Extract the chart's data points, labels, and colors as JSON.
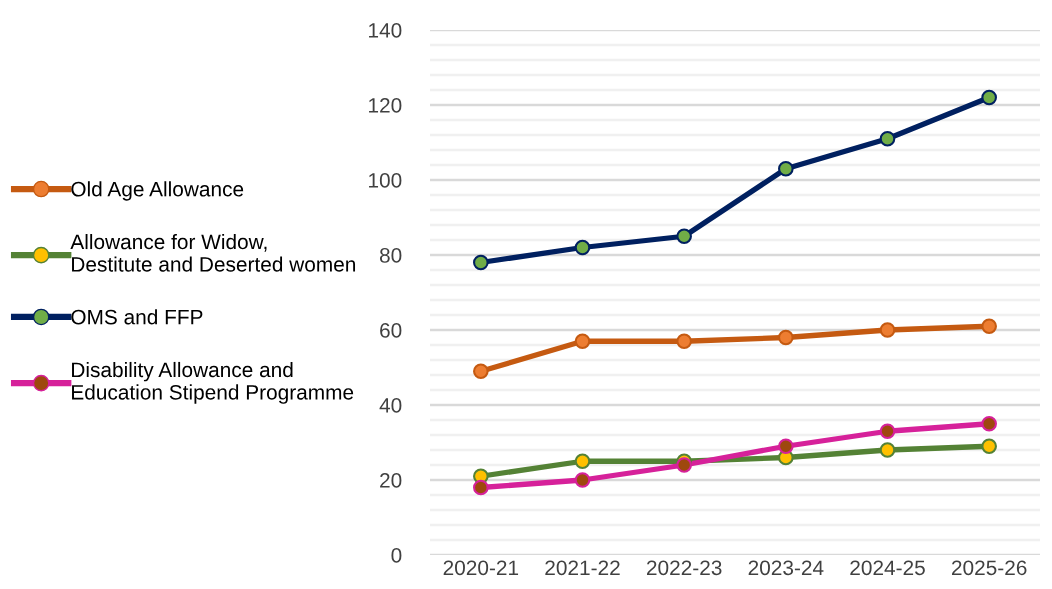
{
  "chart_data": {
    "type": "line",
    "categories": [
      "2020-21",
      "2021-22",
      "2022-23",
      "2023-24",
      "2024-25",
      "2025-26"
    ],
    "series": [
      {
        "name": "Old Age Allowance",
        "color": "#c55a11",
        "colors": [
          "#ed7d31",
          "#ed7d31",
          "#ed7d31",
          "#ed7d31",
          "#ed7d31",
          "#ed7d31"
        ],
        "values": [
          49,
          57,
          57,
          58,
          60,
          61
        ]
      },
      {
        "name": "Allowance for Widow,\nDestitute and Deserted women",
        "color": "#548235",
        "colors": [
          "#ffc000",
          "#ffc000",
          "#ffc000",
          "#ffc000",
          "#ffc000",
          "#ffc000"
        ],
        "values": [
          21,
          25,
          25,
          26,
          28,
          29
        ]
      },
      {
        "name": "OMS and FFP",
        "color": "#002060",
        "colors": [
          "#70ad47",
          "#70ad47",
          "#70ad47",
          "#70ad47",
          "#70ad47",
          "#70ad47"
        ],
        "values": [
          78,
          82,
          85,
          103,
          111,
          122
        ]
      },
      {
        "name": "Disability Allowance and\nEducation Stipend Programme",
        "color": "#d6219a",
        "colors": [
          "#9e480e",
          "#9e480e",
          "#9e480e",
          "#9e480e",
          "#9e480e",
          "#9e480e"
        ],
        "values": [
          18,
          20,
          24,
          29,
          33,
          35
        ]
      }
    ],
    "ylim": [
      0,
      140
    ],
    "yticks": [
      0,
      {
        "value": 4,
        "label": null
      },
      {
        "value": 8,
        "label": null
      },
      {
        "value": 12,
        "label": null
      },
      {
        "value": 16,
        "label": null
      },
      20,
      {
        "value": 24,
        "label": null
      },
      {
        "value": 28,
        "label": null
      },
      {
        "value": 32,
        "label": null
      },
      {
        "value": 36,
        "label": null
      },
      40,
      {
        "value": 44,
        "label": null
      },
      {
        "value": 48,
        "label": null
      },
      {
        "value": 52,
        "label": null
      },
      {
        "value": 56,
        "label": null
      },
      60,
      {
        "value": 64,
        "label": null
      },
      {
        "value": 68,
        "label": null
      },
      {
        "value": 72,
        "label": null
      },
      {
        "value": 76,
        "label": null
      },
      80,
      {
        "value": 84,
        "label": null
      },
      {
        "value": 88,
        "label": null
      },
      {
        "value": 92,
        "label": null
      },
      {
        "value": 96,
        "label": null
      },
      100,
      {
        "value": 104,
        "label": null
      },
      {
        "value": 108,
        "label": null
      },
      {
        "value": 112,
        "label": null
      },
      {
        "value": 116,
        "label": null
      },
      120,
      {
        "value": 124,
        "label": null
      },
      {
        "value": 128,
        "label": null
      },
      {
        "value": 132,
        "label": null
      },
      {
        "value": 136,
        "label": null
      },
      140
    ],
    "grid": "y",
    "legend": "left",
    "marker": "circle",
    "line_style": "solid"
  }
}
